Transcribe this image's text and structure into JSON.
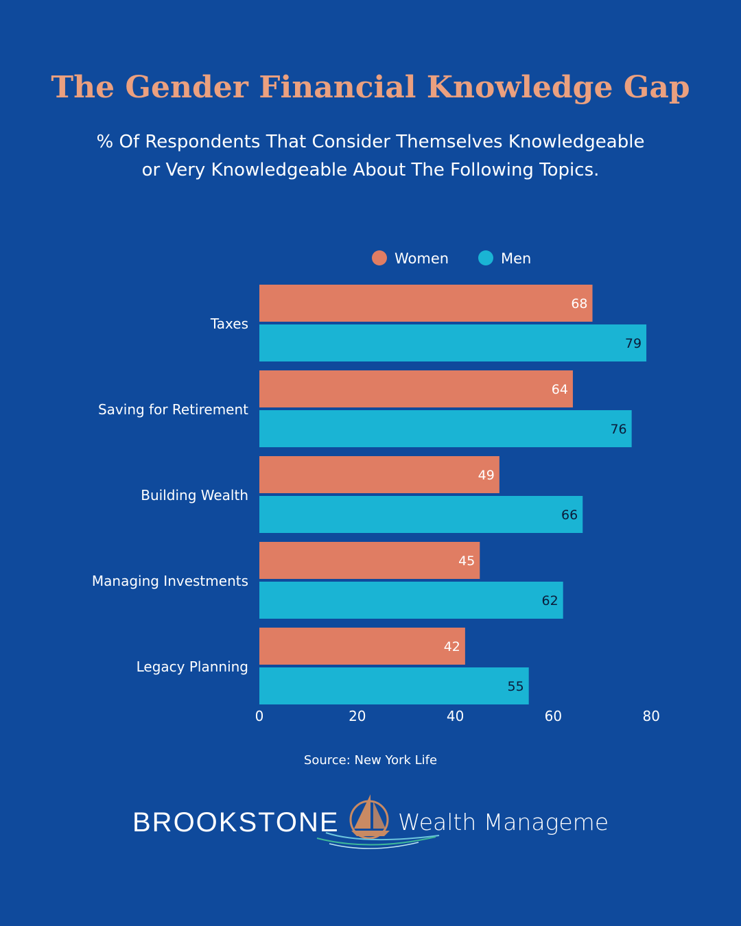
{
  "title": "The Gender Financial Knowledge Gap",
  "subtitle": "% Of Respondents That Consider Themselves Knowledgeable or Very Knowledgeable About The Following Topics.",
  "source": "Source: New York Life",
  "colors": {
    "background": "#0f4a9c",
    "women": "#e07d63",
    "men": "#1ab4d4",
    "title": "#eba07f"
  },
  "chart_data": {
    "type": "bar",
    "orientation": "horizontal",
    "categories": [
      "Taxes",
      "Saving for Retirement",
      "Building Wealth",
      "Managing Investments",
      "Legacy Planning"
    ],
    "series": [
      {
        "name": "Women",
        "values": [
          68,
          64,
          49,
          45,
          42
        ]
      },
      {
        "name": "Men",
        "values": [
          79,
          76,
          66,
          62,
          55
        ]
      }
    ],
    "xlim": [
      0,
      80
    ],
    "xticks": [
      0,
      20,
      40,
      60,
      80
    ],
    "legend_position": "top",
    "grid": false
  },
  "logo": {
    "brand": "BROOKSTONE",
    "tagline": "Wealth Management"
  }
}
